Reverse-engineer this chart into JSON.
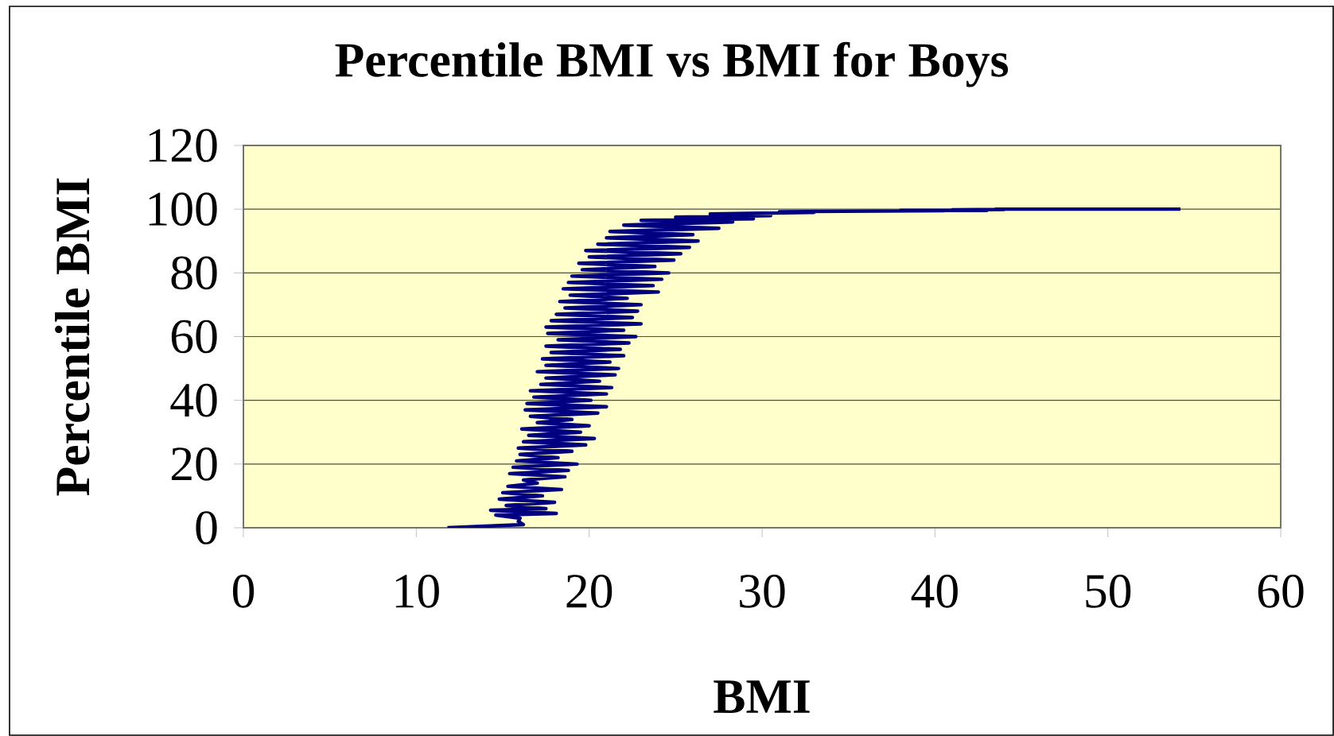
{
  "chart_data": {
    "type": "line",
    "title": "Percentile BMI vs BMI for Boys",
    "xlabel": "BMI",
    "ylabel": "Percentile BMI",
    "color": "#000080",
    "grid": "y",
    "xlim": [
      0,
      60
    ],
    "ylim": [
      0,
      120
    ],
    "xticks": [
      0,
      10,
      20,
      30,
      40,
      50,
      60
    ],
    "yticks": [
      0,
      20,
      40,
      60,
      80,
      100,
      120
    ],
    "x": [
      11.8,
      16.2,
      15.9,
      16.0,
      14.6,
      18.1,
      14.3,
      17.5,
      15.2,
      18.0,
      14.8,
      17.3,
      15.0,
      18.4,
      15.3,
      17.0,
      16.2,
      18.6,
      15.4,
      18.8,
      15.6,
      19.3,
      15.8,
      18.2,
      16.0,
      19.0,
      15.9,
      19.8,
      16.2,
      20.3,
      16.5,
      19.5,
      16.1,
      20.0,
      17.0,
      19.0,
      16.6,
      20.5,
      16.3,
      21.0,
      16.4,
      20.1,
      16.8,
      21.0,
      16.6,
      21.3,
      17.2,
      20.6,
      17.5,
      21.5,
      17.0,
      21.7,
      17.5,
      21.2,
      17.3,
      22.0,
      17.8,
      21.8,
      17.5,
      22.3,
      18.2,
      22.7,
      17.6,
      22.0,
      17.5,
      23.0,
      17.8,
      22.5,
      18.1,
      22.8,
      18.6,
      23.0,
      18.3,
      22.2,
      18.9,
      24.0,
      18.5,
      23.7,
      18.8,
      24.2,
      19.0,
      24.6,
      19.6,
      23.8,
      19.4,
      24.9,
      20.0,
      25.3,
      19.8,
      25.8,
      20.5,
      26.3,
      21.0,
      26.0,
      21.2,
      27.5,
      22.0,
      28.3,
      23.0,
      29.5,
      25.0,
      30.5,
      27.0,
      33.0,
      31.0,
      40.5,
      38.0,
      43.0,
      41.0,
      44.0,
      43.5,
      54.2
    ],
    "values": [
      0,
      1,
      2,
      3,
      4,
      4.5,
      5.5,
      6,
      7,
      8,
      9,
      10,
      11,
      12,
      13,
      14,
      15,
      16,
      17,
      18,
      19,
      20,
      21,
      22,
      23,
      24,
      25,
      26,
      27,
      28,
      29,
      30,
      31,
      32,
      33,
      34,
      35,
      36,
      37,
      38,
      39,
      40,
      41,
      42,
      43,
      44,
      45,
      46,
      47,
      48,
      49,
      50,
      51,
      52,
      53,
      54,
      55,
      56,
      57,
      58,
      59,
      60,
      61,
      62,
      63,
      64,
      65,
      66,
      67,
      68,
      69,
      70,
      71,
      72,
      73,
      74,
      75,
      76,
      77,
      78,
      79,
      80,
      81,
      82,
      83,
      84,
      85,
      86,
      87,
      88,
      89,
      90,
      91,
      92,
      93,
      94,
      95,
      96,
      96.5,
      97,
      97.5,
      98,
      98.5,
      99,
      99.2,
      99.5,
      99.6,
      99.6,
      99.8,
      99.9,
      100,
      100
    ]
  }
}
